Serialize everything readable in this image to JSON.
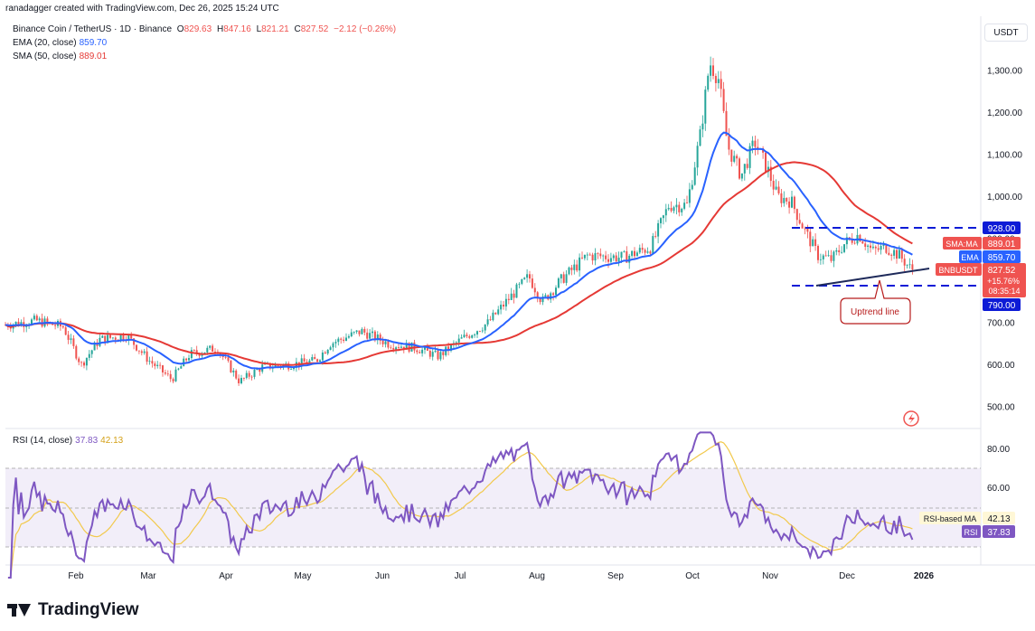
{
  "header": {
    "creator_line": "ranadagger created with TradingView.com, Dec 26, 2025 15:24 UTC"
  },
  "legend": {
    "symbol": "Binance Coin / TetherUS · 1D · Binance",
    "open_label": "O",
    "open": "829.63",
    "high_label": "H",
    "high": "847.16",
    "low_label": "L",
    "low": "821.21",
    "close_label": "C",
    "close": "827.52",
    "change": "−2.12 (−0.26%)",
    "ema_label": "EMA (20, close)",
    "ema_value": "859.70",
    "sma_label": "SMA (50, close)",
    "sma_value": "889.01",
    "rsi_label": "RSI (14, close)",
    "rsi_value": "37.83",
    "rsi_ma_value": "42.13"
  },
  "toolbar": {
    "currency": "USDT"
  },
  "footer": {
    "brand": "TradingView"
  },
  "colors": {
    "up": "#26a69a",
    "down": "#ef5350",
    "ema": "#2962ff",
    "sma": "#e53935",
    "rsi": "#7e57c2",
    "rsi_ma": "#f2c94c",
    "rsi_band": "#ede7f6",
    "level_line": "#0d1bd6",
    "trend_line": "#1e2a5a",
    "price_tag": "#ef5350",
    "level_tag": "#0d1bd6"
  },
  "chart_data": [
    {
      "type": "candlestick",
      "title": "Binance Coin / TetherUS · 1D · Binance",
      "x_ticks": [
        "Feb",
        "Mar",
        "Apr",
        "May",
        "Jun",
        "Jul",
        "Aug",
        "Sep",
        "Oct",
        "Nov",
        "Dec",
        "2026"
      ],
      "y_ticks": [
        "500.00",
        "600.00",
        "700.00",
        "800.00",
        "900.00",
        "1,000.00",
        "1,100.00",
        "1,200.00",
        "1,300.00"
      ],
      "ylim": [
        470,
        1380
      ],
      "series_summary": [
        {
          "x": "Jan",
          "close": 695
        },
        {
          "x": "Feb",
          "close": 660
        },
        {
          "x": "Mar",
          "close": 600
        },
        {
          "x": "Apr",
          "close": 605
        },
        {
          "x": "May",
          "close": 605
        },
        {
          "x": "Jun",
          "close": 650
        },
        {
          "x": "Jul",
          "close": 660
        },
        {
          "x": "Aug",
          "close": 780
        },
        {
          "x": "Sep",
          "close": 870
        },
        {
          "x": "Oct",
          "close": 1150
        },
        {
          "x": "Nov",
          "close": 930
        },
        {
          "x": "Dec",
          "close": 860
        },
        {
          "x": "Dec 26",
          "close": 827.52
        }
      ],
      "horizontal_levels": [
        {
          "value": 928.0,
          "label": "928.00"
        },
        {
          "value": 790.0,
          "label": "790.00"
        }
      ],
      "annotations": [
        {
          "text": "Uptrend line"
        }
      ],
      "price_tags": [
        {
          "label": "SMA:MA",
          "value": "889.01"
        },
        {
          "label": "EMA",
          "value": "859.70"
        },
        {
          "label": "BNBUSDT",
          "value": "827.52",
          "change": "+15.76%",
          "countdown": "08:35:14"
        }
      ],
      "indicators": [
        {
          "name": "EMA",
          "value": 859.7
        },
        {
          "name": "SMA:MA",
          "value": 889.01
        }
      ]
    },
    {
      "type": "line",
      "title": "RSI (14, close)",
      "y_ticks": [
        "60.00",
        "80.00"
      ],
      "ylim": [
        10,
        95
      ],
      "bands": [
        30,
        50,
        70
      ],
      "series": [
        {
          "name": "RSI",
          "last": 37.83
        },
        {
          "name": "RSI-based MA",
          "last": 42.13
        }
      ]
    }
  ]
}
